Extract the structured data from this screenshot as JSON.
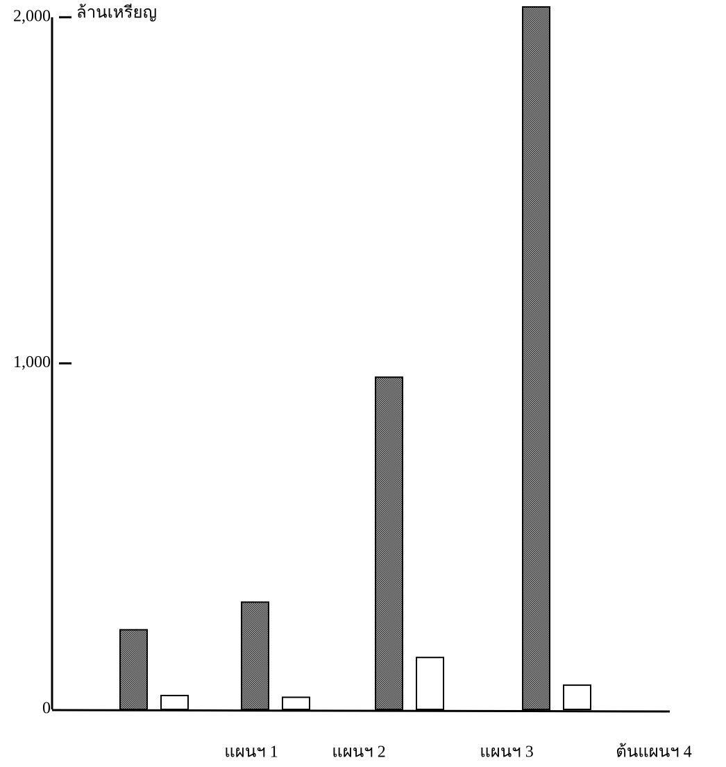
{
  "chart_data": {
    "type": "bar",
    "y_label": "ล้านเหรียญ",
    "categories": [
      "แผนฯ 1",
      "แผนฯ 2",
      "แผนฯ 3",
      "ต้นแผนฯ 4"
    ],
    "series": [
      {
        "color": "#a8a8a8",
        "values": [
          230,
          310,
          960,
          2030
        ]
      },
      {
        "color": "#ffffff",
        "values": [
          40,
          35,
          150,
          70
        ]
      }
    ],
    "ylim": [
      0,
      2050
    ],
    "yticks": [
      0,
      {
        "value": 1000,
        "label": "1,000"
      },
      {
        "value": 2000,
        "label": "2,000"
      }
    ]
  }
}
